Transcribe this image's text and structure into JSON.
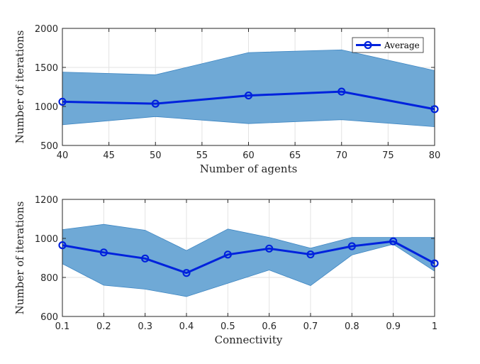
{
  "chart_data": [
    {
      "type": "line",
      "xlabel": "Number of agents",
      "ylabel": "Number of iterations",
      "x": [
        40,
        50,
        60,
        70,
        80
      ],
      "xlim": [
        40,
        80
      ],
      "ylim": [
        500,
        2000
      ],
      "xticks": [
        40,
        45,
        50,
        55,
        60,
        65,
        70,
        75,
        80
      ],
      "yticks": [
        500,
        1000,
        1500,
        2000
      ],
      "grid": true,
      "legend": {
        "placement": "top-right"
      },
      "series": [
        {
          "name": "Average",
          "values": [
            1060,
            1035,
            1140,
            1190,
            965
          ]
        }
      ],
      "band": {
        "upper": [
          1440,
          1405,
          1690,
          1725,
          1460
        ],
        "lower": [
          765,
          870,
          780,
          830,
          740
        ]
      }
    },
    {
      "type": "line",
      "xlabel": "Connectivity",
      "ylabel": "Number of iterations",
      "x": [
        0.1,
        0.2,
        0.3,
        0.4,
        0.5,
        0.6,
        0.7,
        0.8,
        0.9,
        1.0
      ],
      "xlim": [
        0.1,
        1.0
      ],
      "ylim": [
        600,
        1200
      ],
      "xticks": [
        "0.1",
        "0.2",
        "0.3",
        "0.4",
        "0.5",
        "0.6",
        "0.7",
        "0.8",
        "0.9",
        "1"
      ],
      "yticks": [
        600,
        800,
        1000,
        1200
      ],
      "grid": true,
      "series": [
        {
          "values": [
            965,
            928,
            897,
            823,
            917,
            948,
            918,
            960,
            985,
            872
          ]
        }
      ],
      "band": {
        "upper": [
          1045,
          1072,
          1042,
          938,
          1048,
          1005,
          950,
          1005,
          1005,
          1005
        ],
        "lower": [
          870,
          760,
          740,
          702,
          770,
          838,
          758,
          915,
          970,
          832
        ]
      }
    }
  ],
  "colors": {
    "line": "#0022dd",
    "band": "#6fa9d6",
    "band_edge": "#3e86c2",
    "grid": "#e3e3e3",
    "axis": "#262626"
  }
}
